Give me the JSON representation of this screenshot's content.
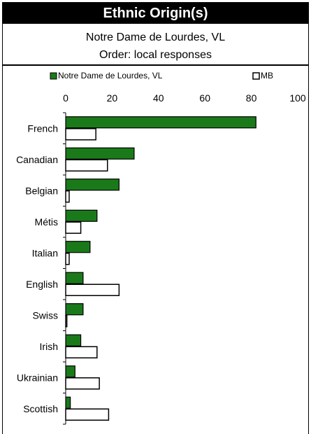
{
  "header": {
    "title": "Ethnic Origin(s)",
    "subtitle": "Notre Dame de Lourdes, VL",
    "order": "Order: local responses"
  },
  "chart_data": {
    "type": "bar",
    "orientation": "horizontal",
    "title": "Ethnic Origin(s)",
    "subtitle": "Notre Dame de Lourdes, VL",
    "xlabel": "",
    "ylabel": "",
    "xlim": [
      0,
      100
    ],
    "xticks": [
      0,
      20,
      40,
      60,
      80,
      100
    ],
    "grid": false,
    "legend_position": "top",
    "categories": [
      "French",
      "Canadian",
      "Belgian",
      "Métis",
      "Italian",
      "English",
      "Swiss",
      "Irish",
      "Ukrainian",
      "Scottish"
    ],
    "series": [
      {
        "name": "Notre Dame de Lourdes, VL",
        "color": "#1a7a1a",
        "values": [
          82,
          29.5,
          23,
          13.5,
          10.5,
          7.5,
          7.5,
          6.5,
          4,
          2
        ]
      },
      {
        "name": "MB",
        "color": "#ffffff",
        "values": [
          13,
          18,
          1.5,
          6.5,
          1.5,
          23,
          0.5,
          13.5,
          14.5,
          18.5
        ]
      }
    ]
  }
}
